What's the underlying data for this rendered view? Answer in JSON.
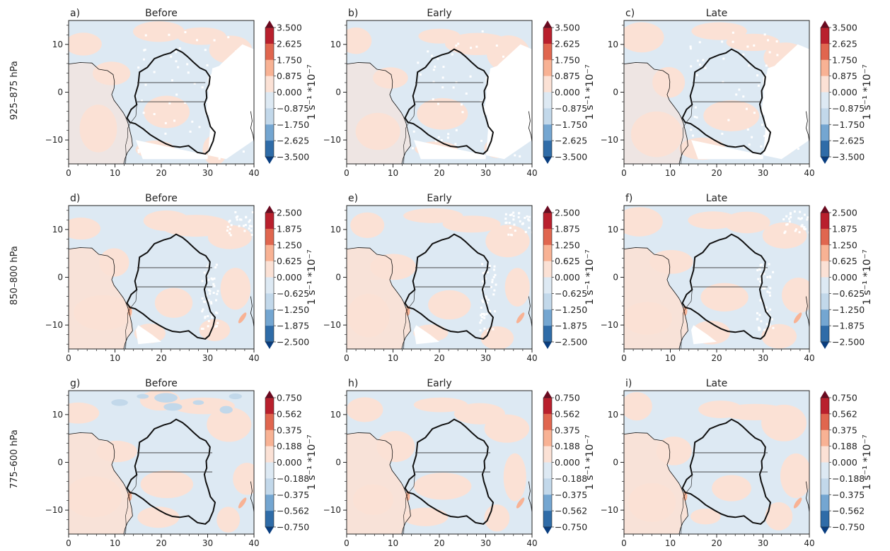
{
  "chart_data": {
    "type": "heatmap",
    "row_labels": [
      "925–875 hPa",
      "850–800 hPa",
      "775–600 hPa"
    ],
    "colorbar_label": "1 s⁻¹ *10⁻⁷",
    "xlim": [
      0,
      40
    ],
    "ylim": [
      -15,
      15
    ],
    "xticks": [
      "0",
      "10",
      "20",
      "30",
      "40"
    ],
    "yticks": [
      "10",
      "0",
      "−10"
    ],
    "colors": {
      "neg4": "#083d7f",
      "neg3": "#2f6ca8",
      "neg2": "#74a6d1",
      "neg1": "#c2d8ea",
      "neg0": "#dde9f3",
      "pos0": "#fbe1d5",
      "pos1": "#f8b294",
      "pos2": "#e0664f",
      "pos3": "#b9202d",
      "pos4": "#6a0a20",
      "basin": "#111111"
    },
    "panels": [
      {
        "label": "a)",
        "title": "Before",
        "levels": [
          "3.500",
          "2.625",
          "1.750",
          "0.875",
          "0.000",
          "−0.875",
          "−1.750",
          "−2.625",
          "−3.500"
        ]
      },
      {
        "label": "b)",
        "title": "Early",
        "levels": [
          "3.500",
          "2.625",
          "1.750",
          "0.875",
          "0.000",
          "−0.875",
          "−1.750",
          "−2.625",
          "−3.500"
        ]
      },
      {
        "label": "c)",
        "title": "Late",
        "levels": [
          "3.500",
          "2.625",
          "1.750",
          "0.875",
          "0.000",
          "−0.875",
          "−1.750",
          "−2.625",
          "−3.500"
        ]
      },
      {
        "label": "d)",
        "title": "Before",
        "levels": [
          "2.500",
          "1.875",
          "1.250",
          "0.625",
          "0.000",
          "−0.625",
          "−1.250",
          "−1.875",
          "−2.500"
        ]
      },
      {
        "label": "e)",
        "title": "Early",
        "levels": [
          "2.500",
          "1.875",
          "1.250",
          "0.625",
          "0.000",
          "−0.625",
          "−1.250",
          "−1.875",
          "−2.500"
        ]
      },
      {
        "label": "f)",
        "title": "Late",
        "levels": [
          "2.500",
          "1.875",
          "1.250",
          "0.625",
          "0.000",
          "−0.625",
          "−1.250",
          "−1.875",
          "−2.500"
        ]
      },
      {
        "label": "g)",
        "title": "Before",
        "levels": [
          "0.750",
          "0.562",
          "0.375",
          "0.188",
          "0.000",
          "−0.188",
          "−0.375",
          "−0.562",
          "−0.750"
        ]
      },
      {
        "label": "h)",
        "title": "Early",
        "levels": [
          "0.750",
          "0.562",
          "0.375",
          "0.188",
          "0.000",
          "−0.188",
          "−0.375",
          "−0.562",
          "−0.750"
        ]
      },
      {
        "label": "i)",
        "title": "Late",
        "levels": [
          "0.750",
          "0.562",
          "0.375",
          "0.188",
          "0.000",
          "−0.188",
          "−0.375",
          "−0.562",
          "−0.750"
        ]
      }
    ]
  }
}
